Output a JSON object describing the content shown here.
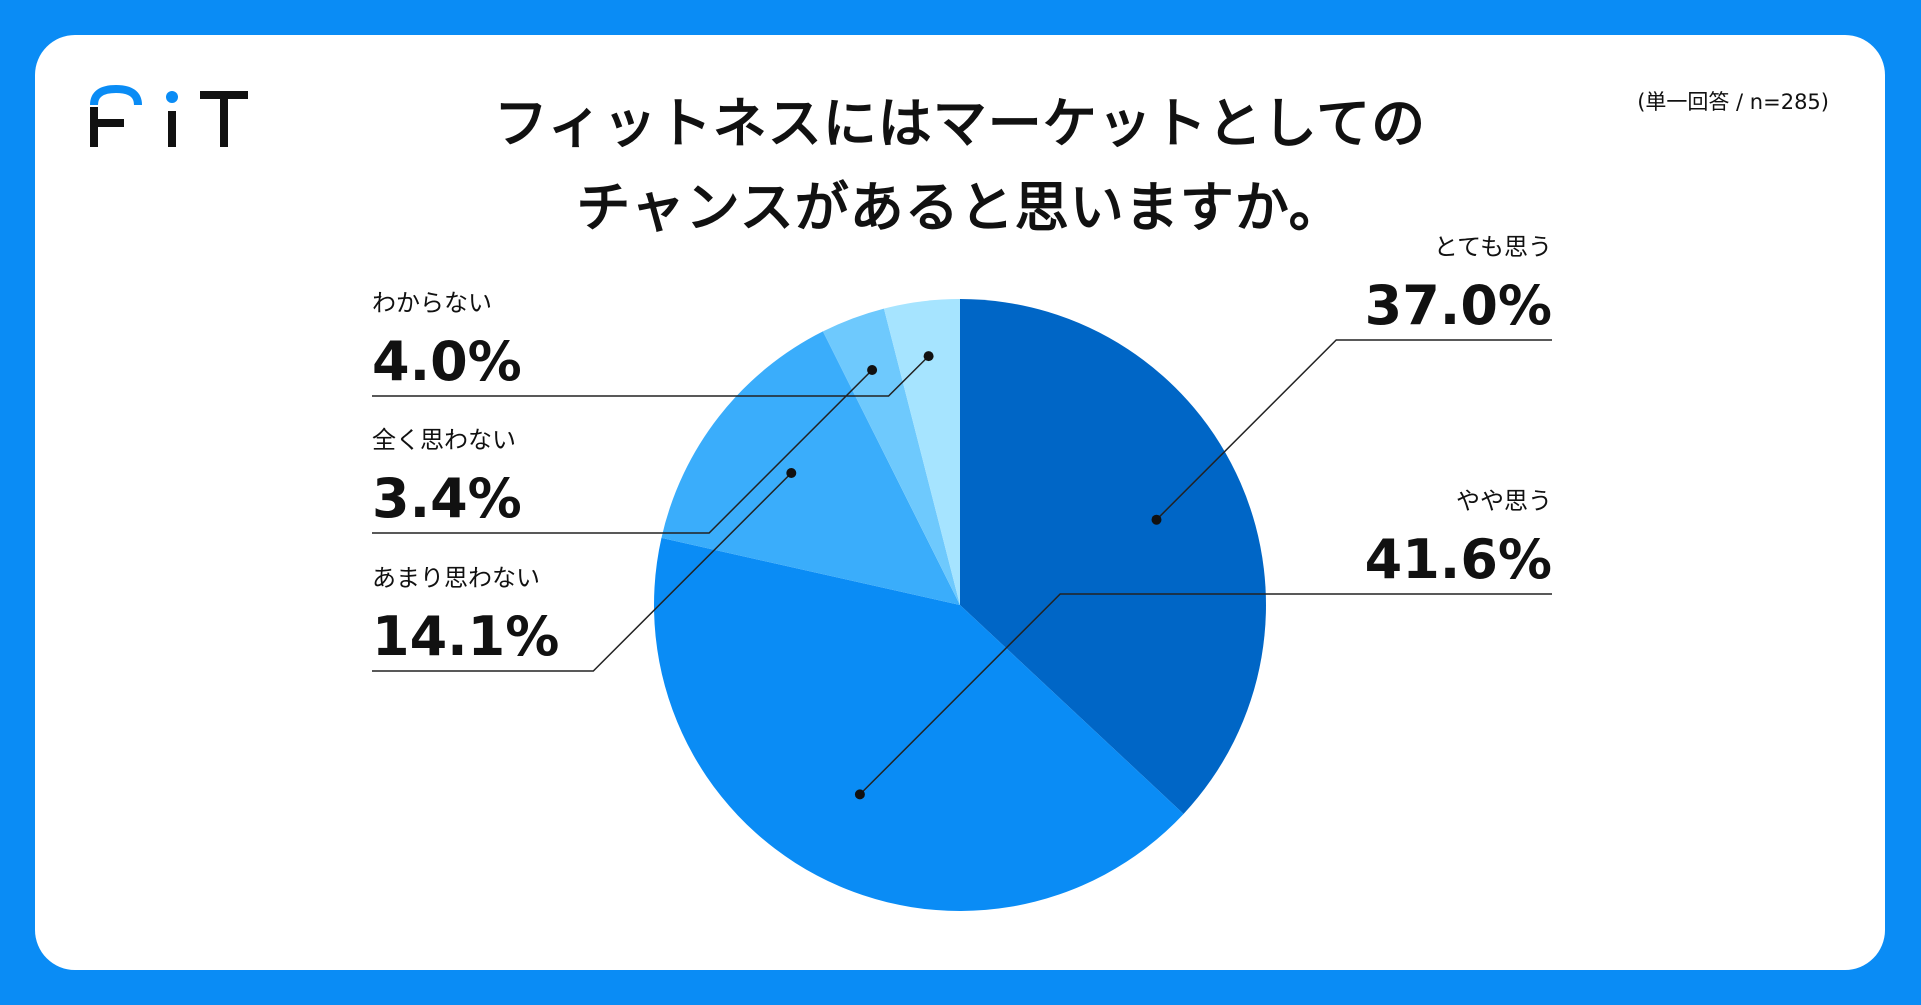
{
  "title_lines": [
    "フィットネスにはマーケットとしての",
    "チャンスがあると思いますか。"
  ],
  "meta": "(単一回答 / n=285)",
  "brand": {
    "logo_text": "FIT",
    "colors": {
      "background": "#0a8cf5",
      "card": "#ffffff",
      "logo_accent": "#0a8cf5"
    }
  },
  "chart_data": {
    "type": "pie",
    "title": "フィットネスにはマーケットとしてのチャンスがあると思いますか。",
    "start_angle_deg": 0,
    "direction": "clockwise",
    "slices": [
      {
        "label": "とても思う",
        "value": 37.0,
        "display": "37.0%",
        "color": "#0066c6"
      },
      {
        "label": "やや思う",
        "value": 41.6,
        "display": "41.6%",
        "color": "#0a8cf5"
      },
      {
        "label": "あまり思わない",
        "value": 14.1,
        "display": "14.1%",
        "color": "#3aadfb"
      },
      {
        "label": "全く思わない",
        "value": 3.4,
        "display": "3.4%",
        "color": "#6ec9fd"
      },
      {
        "label": "わからない",
        "value": 4.0,
        "display": "4.0%",
        "color": "#a6e4ff"
      }
    ]
  }
}
